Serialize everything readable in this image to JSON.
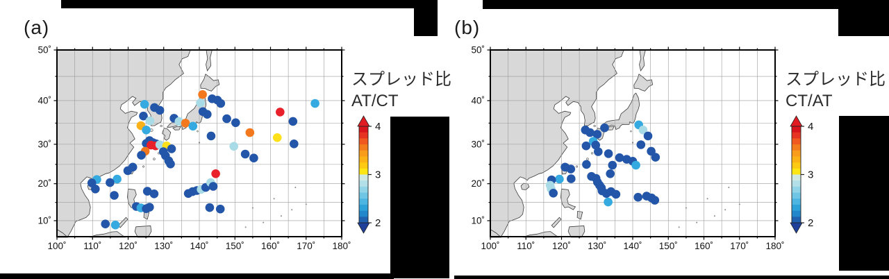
{
  "figure": {
    "description": "Two-panel Mercator map of East Asia / Northwest Pacific with colored station dots showing spread ratios",
    "background": "#ffffff"
  },
  "axes": {
    "lon_labels": [
      "100˚",
      "110˚",
      "120˚",
      "130˚",
      "140˚",
      "150˚",
      "160˚",
      "170˚",
      "180˚"
    ],
    "lon_values": [
      100,
      110,
      120,
      130,
      140,
      150,
      160,
      170,
      180
    ],
    "lat_labels": [
      "50˚",
      "40˚",
      "30˚",
      "20˚",
      "10˚"
    ],
    "lat_values": [
      50,
      40,
      30,
      20,
      10
    ],
    "grid_interval_deg": 5
  },
  "map_style": {
    "land": "#d8d8d8",
    "coast": "#3c3c3c",
    "grid": "#9a9a9a",
    "frame": "#000000",
    "ocean": "#ffffff"
  },
  "value_colors": {
    "2": "#2356a8",
    "2.3": "#35aae0",
    "2.8": "#a9dbe6",
    "3.1": "#ffe01a",
    "3.3": "#fcb216",
    "3.5": "#f4791e",
    "4": "#e8212a"
  },
  "colorbar": {
    "ticks": [
      "4",
      "3",
      "2"
    ],
    "tick_values": [
      4,
      3,
      2
    ],
    "range": [
      2,
      4
    ],
    "arrow_up_color": "#e11b22",
    "arrow_down_color": "#20409a",
    "segments": [
      "#d8151d",
      "#e73422",
      "#f0591f",
      "#f37c1c",
      "#f89c1b",
      "#fbb216",
      "#fdc913",
      "#fee514",
      "#cfe9e2",
      "#b2dfe8",
      "#92d4e7",
      "#6ec5e4",
      "#4cb5e1",
      "#2da2d9",
      "#2388cb",
      "#2062b0"
    ]
  },
  "chart_data": [
    {
      "type": "scatter",
      "subtype": "geo-map",
      "panel_label": "(a)",
      "colorbar_title_line1": "スプレッド比",
      "colorbar_title_line2": "AT/CT",
      "projection": "mercator",
      "lon_range": [
        100,
        180
      ],
      "lat_range": [
        5.5,
        50
      ],
      "colorbar_range": [
        2,
        4
      ],
      "colorbar_ticks": [
        "4",
        "3",
        "2"
      ],
      "value_note": "point value = spread ratio AT/CT estimated from dot color",
      "points": [
        [
          124.6,
          39.2,
          2.3
        ],
        [
          127.4,
          38.5,
          2
        ],
        [
          128.9,
          37.9,
          2
        ],
        [
          124.3,
          36.6,
          2
        ],
        [
          126.1,
          35.5,
          2.8
        ],
        [
          123.6,
          34.4,
          3.3
        ],
        [
          125.1,
          33.4,
          2.3
        ],
        [
          132.9,
          36.1,
          2
        ],
        [
          134.3,
          35.4,
          2.8
        ],
        [
          136.1,
          35.0,
          3.5
        ],
        [
          138.2,
          34.3,
          2.3
        ],
        [
          140.9,
          41.3,
          3.5
        ],
        [
          140.3,
          39.5,
          2.8
        ],
        [
          143.6,
          40.4,
          2
        ],
        [
          145.1,
          40.1,
          2
        ],
        [
          146.0,
          39.4,
          2
        ],
        [
          141.0,
          37.6,
          2
        ],
        [
          142.2,
          37.0,
          2
        ],
        [
          147.7,
          36.0,
          2
        ],
        [
          150.2,
          35.1,
          2
        ],
        [
          162.7,
          37.5,
          4
        ],
        [
          172.5,
          39.4,
          2.3
        ],
        [
          166.3,
          35.4,
          2
        ],
        [
          154.2,
          32.8,
          3.5
        ],
        [
          161.9,
          31.6,
          3.1
        ],
        [
          166.6,
          30.1,
          2
        ],
        [
          149.7,
          29.5,
          2.8
        ],
        [
          152.9,
          27.6,
          2
        ],
        [
          155.3,
          26.6,
          2
        ],
        [
          143.3,
          32.0,
          2
        ],
        [
          126.0,
          30.9,
          2
        ],
        [
          125.1,
          30.2,
          2
        ],
        [
          127.0,
          30.4,
          2
        ],
        [
          127.9,
          30.1,
          2
        ],
        [
          126.4,
          29.8,
          4
        ],
        [
          127.7,
          29.6,
          4
        ],
        [
          124.8,
          28.3,
          3.5
        ],
        [
          123.7,
          27.3,
          2
        ],
        [
          128.9,
          29.9,
          2.8
        ],
        [
          130.8,
          29.6,
          3.1
        ],
        [
          132.2,
          28.9,
          2
        ],
        [
          129.9,
          28.2,
          2
        ],
        [
          130.5,
          27.2,
          2
        ],
        [
          131.4,
          25.9,
          2
        ],
        [
          131.9,
          25.1,
          2
        ],
        [
          119.9,
          23.4,
          2
        ],
        [
          121.3,
          24.3,
          2
        ],
        [
          116.9,
          21.2,
          2.3
        ],
        [
          114.9,
          20.3,
          2
        ],
        [
          111.2,
          21.1,
          2.3
        ],
        [
          109.8,
          20.2,
          2
        ],
        [
          110.8,
          18.6,
          2
        ],
        [
          116.1,
          16.9,
          2
        ],
        [
          122.3,
          13.9,
          2
        ],
        [
          123.6,
          13.5,
          2.3
        ],
        [
          125.1,
          13.3,
          2
        ],
        [
          126.0,
          13.7,
          2
        ],
        [
          113.6,
          9.1,
          2
        ],
        [
          116.4,
          8.8,
          2.3
        ],
        [
          125.4,
          18.0,
          2
        ],
        [
          127.3,
          17.3,
          2
        ],
        [
          136.9,
          17.4,
          2
        ],
        [
          138.1,
          17.9,
          2
        ],
        [
          139.3,
          18.2,
          2
        ],
        [
          140.5,
          18.5,
          2.8
        ],
        [
          141.8,
          19.0,
          2
        ],
        [
          143.2,
          20.3,
          2.8
        ],
        [
          143.9,
          19.3,
          2
        ],
        [
          144.6,
          22.6,
          4
        ],
        [
          142.9,
          13.6,
          2
        ],
        [
          145.9,
          13.2,
          2
        ]
      ]
    },
    {
      "type": "scatter",
      "subtype": "geo-map",
      "panel_label": "(b)",
      "colorbar_title_line1": "スプレッド比",
      "colorbar_title_line2": "CT/AT",
      "projection": "mercator",
      "lon_range": [
        100,
        180
      ],
      "lat_range": [
        5.5,
        50
      ],
      "colorbar_range": [
        2,
        4
      ],
      "colorbar_ticks": [
        "4",
        "3",
        "2"
      ],
      "value_note": "point value = spread ratio CT/AT estimated from dot color",
      "points": [
        [
          126.7,
          33.4,
          2
        ],
        [
          128.0,
          32.8,
          2
        ],
        [
          130.0,
          32.4,
          2
        ],
        [
          132.1,
          33.9,
          2
        ],
        [
          128.9,
          30.7,
          2.3
        ],
        [
          129.6,
          29.8,
          2
        ],
        [
          126.9,
          29.6,
          2
        ],
        [
          130.3,
          28.2,
          2
        ],
        [
          127.0,
          25.0,
          2
        ],
        [
          133.2,
          27.7,
          2
        ],
        [
          134.3,
          24.8,
          2
        ],
        [
          136.3,
          26.7,
          2
        ],
        [
          138.3,
          26.3,
          2
        ],
        [
          140.0,
          25.8,
          2
        ],
        [
          140.9,
          24.8,
          2.3
        ],
        [
          141.7,
          34.6,
          2.3
        ],
        [
          142.9,
          33.4,
          2.8
        ],
        [
          144.3,
          32.0,
          2
        ],
        [
          142.3,
          29.9,
          2
        ],
        [
          145.2,
          28.3,
          2
        ],
        [
          146.4,
          26.8,
          2
        ],
        [
          133.7,
          22.6,
          2
        ],
        [
          121.0,
          24.3,
          2
        ],
        [
          122.6,
          23.8,
          2
        ],
        [
          122.7,
          21.3,
          2
        ],
        [
          119.4,
          21.2,
          2.3
        ],
        [
          117.2,
          21.0,
          2
        ],
        [
          116.8,
          19.6,
          2.8
        ],
        [
          117.1,
          18.6,
          2.8
        ],
        [
          117.7,
          17.5,
          2
        ],
        [
          128.4,
          21.9,
          2
        ],
        [
          129.7,
          21.4,
          2
        ],
        [
          130.1,
          20.4,
          2
        ],
        [
          130.7,
          19.6,
          2
        ],
        [
          131.2,
          18.9,
          2
        ],
        [
          131.4,
          18.1,
          2
        ],
        [
          132.6,
          17.4,
          2
        ],
        [
          133.9,
          17.9,
          2
        ],
        [
          135.3,
          17.2,
          2
        ],
        [
          133.1,
          15.1,
          2.3
        ],
        [
          141.5,
          16.4,
          2
        ],
        [
          143.9,
          16.7,
          2
        ],
        [
          145.3,
          16.2,
          2
        ],
        [
          146.2,
          15.6,
          2
        ]
      ]
    }
  ]
}
